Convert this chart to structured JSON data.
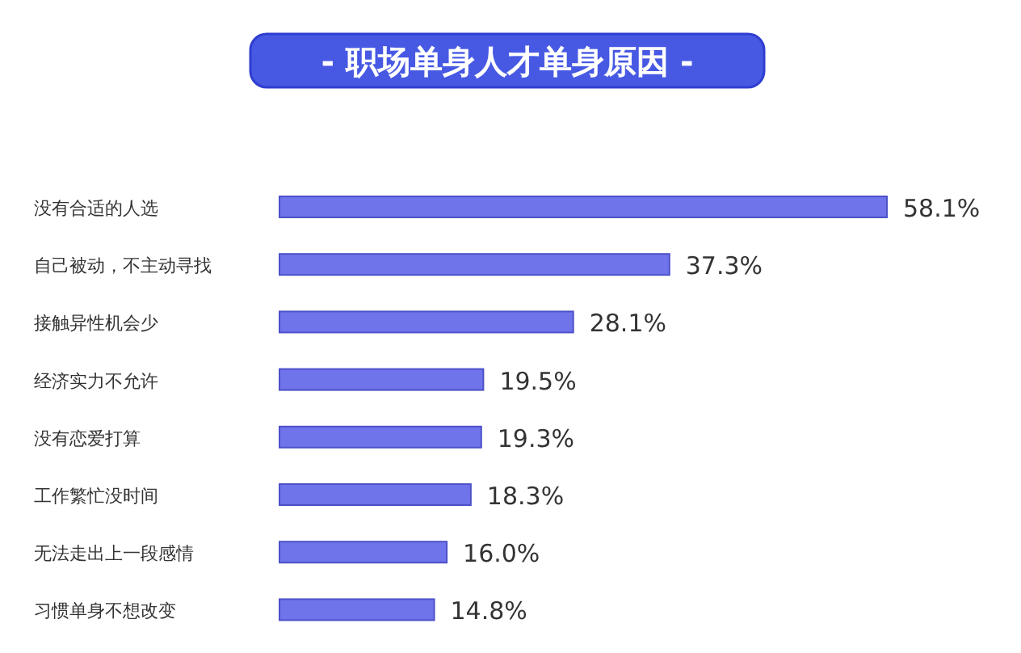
{
  "chart_data": {
    "type": "bar",
    "orientation": "horizontal",
    "title": "- 职场单身人才单身原因 -",
    "categories": [
      "没有合适的人选",
      "自己被动，不主动寻找",
      "接触异性机会少",
      "经济实力不允许",
      "没有恋爱打算",
      "工作繁忙没时间",
      "无法走出上一段感情",
      "习惯单身不想改变"
    ],
    "values": [
      58.1,
      37.3,
      28.1,
      19.5,
      19.3,
      18.3,
      16.0,
      14.8
    ],
    "value_labels": [
      "58.1%",
      "37.3%",
      "28.1%",
      "19.5%",
      "19.3%",
      "18.3%",
      "16.0%",
      "14.8%"
    ],
    "color": "#7074ea"
  }
}
